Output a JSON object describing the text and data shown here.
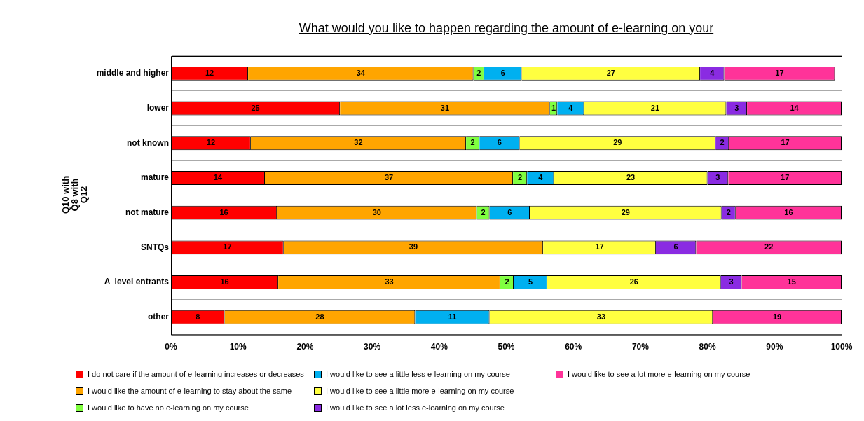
{
  "chart_data": {
    "type": "bar",
    "orientation": "horizontal",
    "stacked": true,
    "title": "What would you like to happen regarding the amount of e-learning on your",
    "ylabel": "Q10 with Q8 with Q12",
    "categories": [
      "middle and higher",
      "lower",
      "not known",
      "mature",
      "not mature",
      "SNTQs",
      "A  level entrants",
      "other"
    ],
    "xlim": [
      0,
      100
    ],
    "xticks": [
      {
        "value": 0,
        "label": "0%"
      },
      {
        "value": 10,
        "label": "10%"
      },
      {
        "value": 20,
        "label": "20%"
      },
      {
        "value": 30,
        "label": "30%"
      },
      {
        "value": 40,
        "label": "40%"
      },
      {
        "value": 50,
        "label": "50%"
      },
      {
        "value": 60,
        "label": "60%"
      },
      {
        "value": 70,
        "label": "70%"
      },
      {
        "value": 80,
        "label": "80%"
      },
      {
        "value": 90,
        "label": "90%"
      },
      {
        "value": 100,
        "label": "100%"
      }
    ],
    "grid": "y",
    "legend": "bottom",
    "series": [
      {
        "name": "I do not care if the amount of e-learning increases or decreases",
        "color": "#ff0000",
        "values": [
          11.5,
          25.2,
          11.9,
          14.0,
          15.8,
          16.8,
          16.0,
          8.0
        ],
        "value_labels": [
          "12",
          "25",
          "12",
          "14",
          "16",
          "17",
          "16",
          "8"
        ]
      },
      {
        "name": "I would like the amount of e-learning to stay about the same",
        "color": "#ffa500",
        "values": [
          33.6,
          31.3,
          32.1,
          37.0,
          29.8,
          38.7,
          33.1,
          28.4
        ],
        "value_labels": [
          "34",
          "31",
          "32",
          "37",
          "30",
          "39",
          "33",
          "28"
        ]
      },
      {
        "name": "I would like to have no e-learning on my course",
        "color": "#80ff40",
        "values": [
          1.6,
          1.1,
          2.0,
          2.1,
          1.9,
          null,
          2.0,
          null
        ],
        "value_labels": [
          "2",
          "1",
          "2",
          "2",
          "2",
          null,
          "2",
          null
        ]
      },
      {
        "name": "I would like to see a little less e-learning on my course",
        "color": "#00b0f0",
        "values": [
          5.6,
          4.0,
          6.0,
          4.0,
          6.0,
          null,
          5.0,
          11.1
        ],
        "value_labels": [
          "6",
          "4",
          "6",
          "4",
          "6",
          null,
          "5",
          "11"
        ]
      },
      {
        "name": "I would like to see a little more e-learning on my course",
        "color": "#ffff40",
        "values": [
          26.6,
          21.2,
          29.2,
          22.9,
          28.6,
          16.8,
          25.9,
          33.3
        ],
        "value_labels": [
          "27",
          "21",
          "29",
          "23",
          "29",
          "17",
          "26",
          "33"
        ]
      },
      {
        "name": "I would like to see a lot less e-learning on my course",
        "color": "#8a2be2",
        "values": [
          3.6,
          3.1,
          2.0,
          3.1,
          2.1,
          6.0,
          3.1,
          null
        ],
        "value_labels": [
          "4",
          "3",
          "2",
          "3",
          "2",
          "6",
          "3",
          null
        ]
      },
      {
        "name": "I would like to see a lot more e-learning on my course",
        "color": "#ff3399",
        "values": [
          16.5,
          14.1,
          16.8,
          16.9,
          15.8,
          21.7,
          14.9,
          19.2
        ],
        "value_labels": [
          "17",
          "14",
          "17",
          "17",
          "16",
          "22",
          "15",
          "19"
        ]
      }
    ]
  }
}
